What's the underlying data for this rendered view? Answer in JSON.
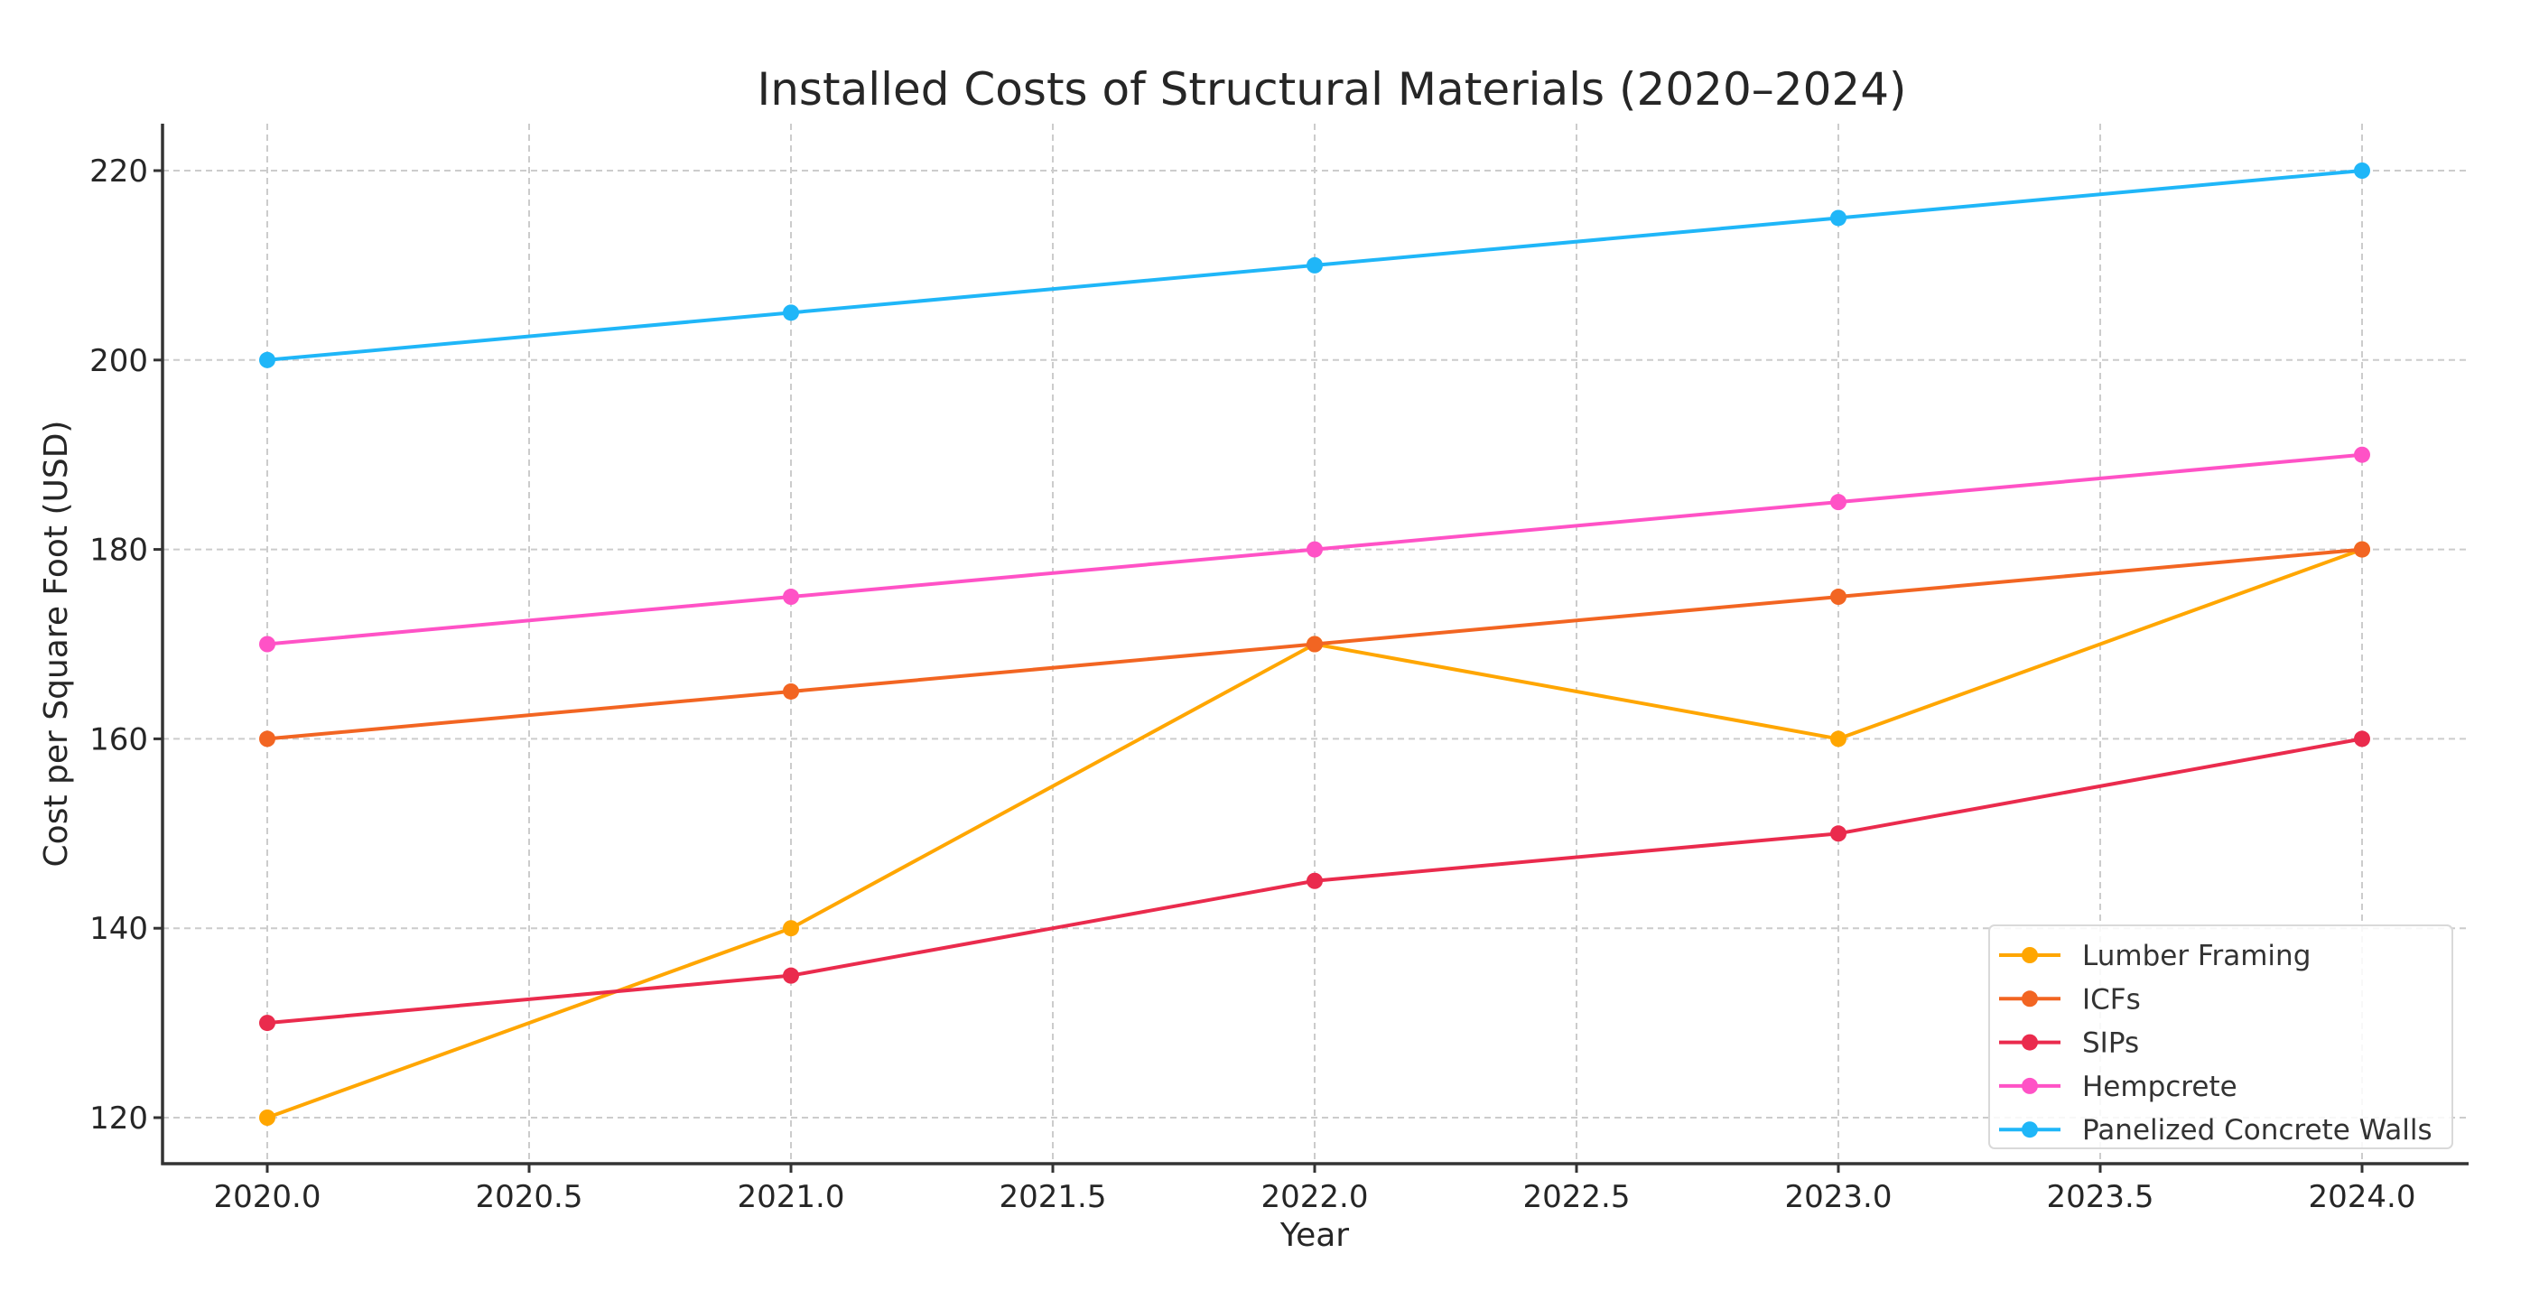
{
  "chart_data": {
    "type": "line",
    "title": "Installed Costs of Structural Materials (2020–2024)",
    "xlabel": "Year",
    "ylabel": "Cost per Square Foot (USD)",
    "x": [
      2020,
      2021,
      2022,
      2023,
      2024
    ],
    "xlim": [
      2019.8,
      2024.2
    ],
    "ylim": [
      115,
      225
    ],
    "xticks": [
      2020.0,
      2020.5,
      2021.0,
      2021.5,
      2022.0,
      2022.5,
      2023.0,
      2023.5,
      2024.0
    ],
    "xtick_labels": [
      "2020.0",
      "2020.5",
      "2021.0",
      "2021.5",
      "2022.0",
      "2022.5",
      "2023.0",
      "2023.5",
      "2024.0"
    ],
    "yticks": [
      120,
      140,
      160,
      180,
      200,
      220
    ],
    "ytick_labels": [
      "120",
      "140",
      "160",
      "180",
      "200",
      "220"
    ],
    "grid": true,
    "legend_position": "bottom-right",
    "series": [
      {
        "name": "Lumber Framing",
        "color": "#ffa600",
        "values": [
          120,
          140,
          170,
          160,
          180
        ]
      },
      {
        "name": "ICFs",
        "color": "#f26522",
        "values": [
          160,
          165,
          170,
          175,
          180
        ]
      },
      {
        "name": "SIPs",
        "color": "#ea2b4d",
        "values": [
          130,
          135,
          145,
          150,
          160
        ]
      },
      {
        "name": "Hempcrete",
        "color": "#ff52c6",
        "values": [
          170,
          175,
          180,
          185,
          190
        ]
      },
      {
        "name": "Panelized Concrete Walls",
        "color": "#1fb6f8",
        "values": [
          200,
          205,
          210,
          215,
          220
        ]
      }
    ]
  }
}
